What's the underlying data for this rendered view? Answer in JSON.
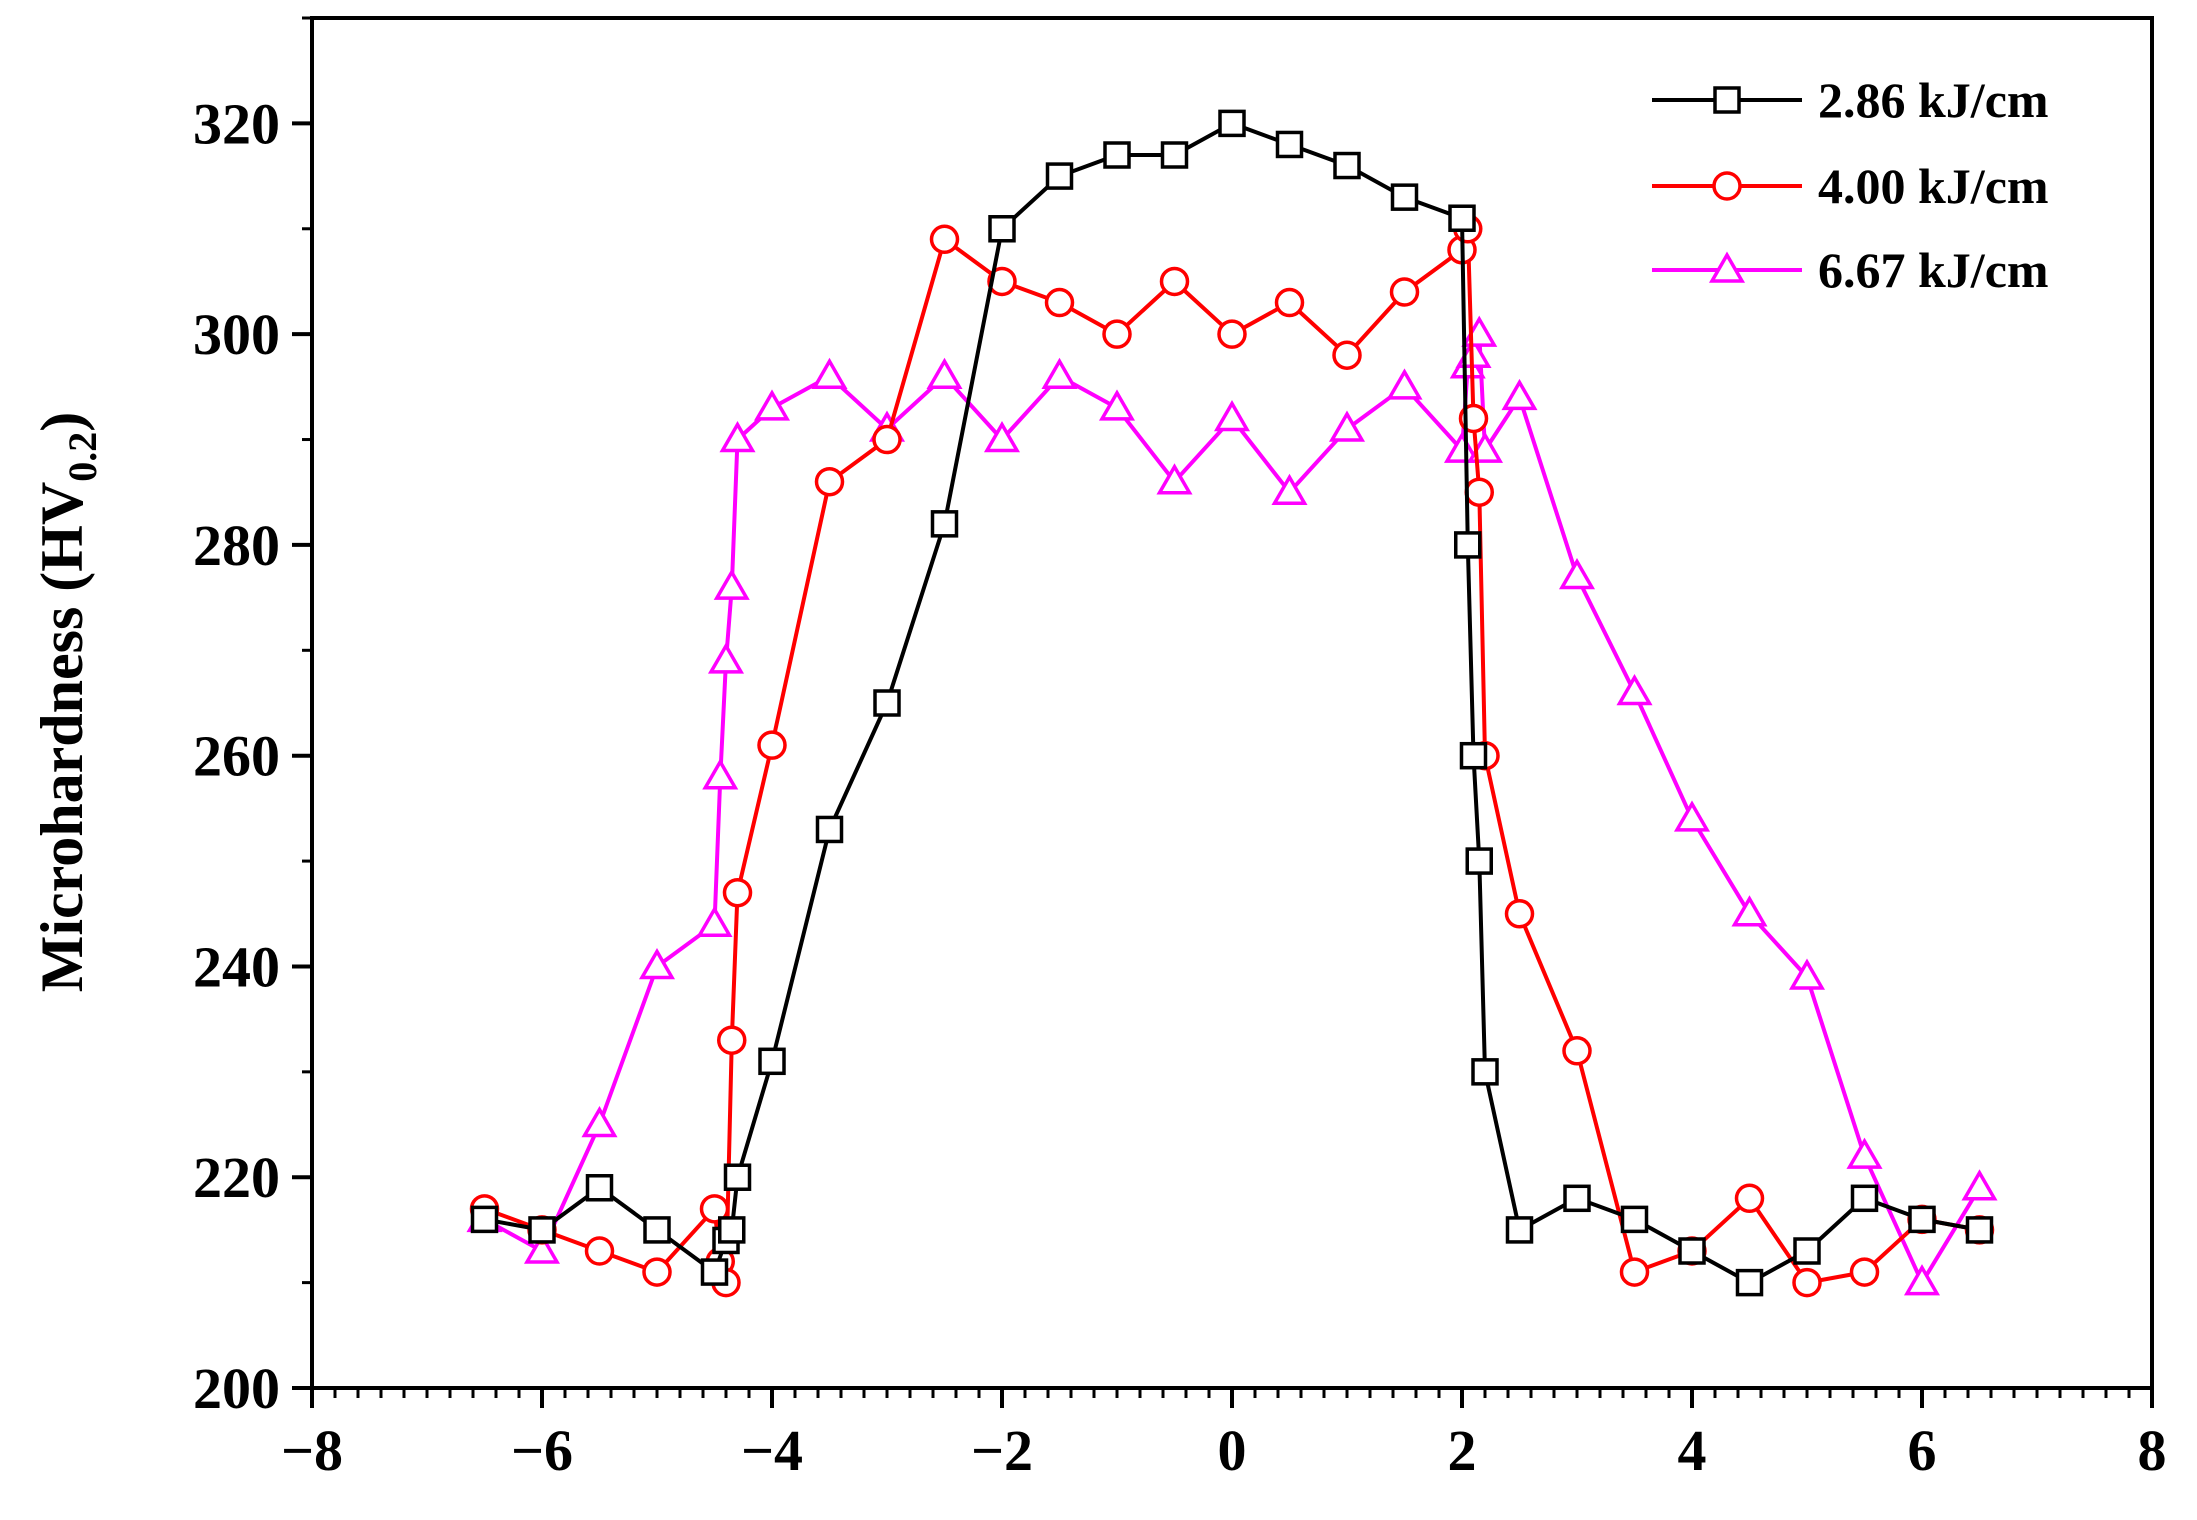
{
  "chart_data": {
    "type": "line",
    "title": "",
    "xlabel": "",
    "ylabel": "Microhardness (HV",
    "ylabel_subscript": "0.2",
    "ylabel_close": ")",
    "xlim": [
      -8,
      8
    ],
    "ylim": [
      200,
      330
    ],
    "x_ticks": [
      -8,
      -6,
      -4,
      -2,
      0,
      2,
      4,
      6,
      8
    ],
    "x_tick_labels": [
      "−8",
      "−6",
      "−4",
      "−2",
      "0",
      "2",
      "4",
      "6",
      "8"
    ],
    "y_ticks": [
      200,
      220,
      240,
      260,
      280,
      300,
      320
    ],
    "y_tick_labels": [
      "200",
      "220",
      "240",
      "260",
      "280",
      "300",
      "320"
    ],
    "grid": false,
    "legend_position": "top-right",
    "series": [
      {
        "name": "2.86 kJ/cm",
        "color": "#000000",
        "marker": "square",
        "x": [
          -6.5,
          -6.0,
          -5.5,
          -5.0,
          -4.5,
          -4.4,
          -4.35,
          -4.3,
          -4.0,
          -3.5,
          -3.0,
          -2.5,
          -2.0,
          -1.5,
          -1.0,
          -0.5,
          0.0,
          0.5,
          1.0,
          1.5,
          2.0,
          2.05,
          2.1,
          2.15,
          2.2,
          2.5,
          3.0,
          3.5,
          4.0,
          4.5,
          5.0,
          5.5,
          6.0,
          6.5
        ],
        "y": [
          216,
          215,
          219,
          215,
          211,
          214,
          215,
          220,
          231,
          253,
          265,
          282,
          310,
          315,
          317,
          317,
          320,
          318,
          316,
          313,
          311,
          280,
          260,
          250,
          230,
          215,
          218,
          216,
          213,
          210,
          213,
          218,
          216,
          215
        ]
      },
      {
        "name": "4.00 kJ/cm",
        "color": "#ff0000",
        "marker": "circle",
        "x": [
          -6.5,
          -6.0,
          -5.5,
          -5.0,
          -4.5,
          -4.45,
          -4.4,
          -4.35,
          -4.3,
          -4.0,
          -3.5,
          -3.0,
          -2.5,
          -2.0,
          -1.5,
          -1.0,
          -0.5,
          0.0,
          0.5,
          1.0,
          1.5,
          2.0,
          2.05,
          2.1,
          2.15,
          2.2,
          2.5,
          3.0,
          3.5,
          4.0,
          4.5,
          5.0,
          5.5,
          6.0,
          6.5
        ],
        "y": [
          217,
          215,
          213,
          211,
          217,
          212,
          210,
          233,
          247,
          261,
          286,
          290,
          309,
          305,
          303,
          300,
          305,
          300,
          303,
          298,
          304,
          308,
          310,
          292,
          285,
          260,
          245,
          232,
          211,
          213,
          218,
          210,
          211,
          216,
          215
        ]
      },
      {
        "name": "6.67 kJ/cm",
        "color": "#ff00ff",
        "marker": "triangle",
        "x": [
          -6.5,
          -6.0,
          -5.5,
          -5.0,
          -4.5,
          -4.45,
          -4.4,
          -4.35,
          -4.3,
          -4.0,
          -3.5,
          -3.0,
          -2.5,
          -2.0,
          -1.5,
          -1.0,
          -0.5,
          0.0,
          0.5,
          1.0,
          1.5,
          2.0,
          2.05,
          2.1,
          2.15,
          2.2,
          2.5,
          3.0,
          3.5,
          4.0,
          4.5,
          5.0,
          5.5,
          6.0,
          6.5
        ],
        "y": [
          216,
          213,
          225,
          240,
          244,
          258,
          269,
          276,
          290,
          293,
          296,
          291,
          296,
          290,
          296,
          293,
          286,
          292,
          285,
          291,
          295,
          289,
          297,
          298,
          300,
          289,
          294,
          277,
          266,
          254,
          245,
          239,
          222,
          210,
          219
        ]
      }
    ]
  }
}
